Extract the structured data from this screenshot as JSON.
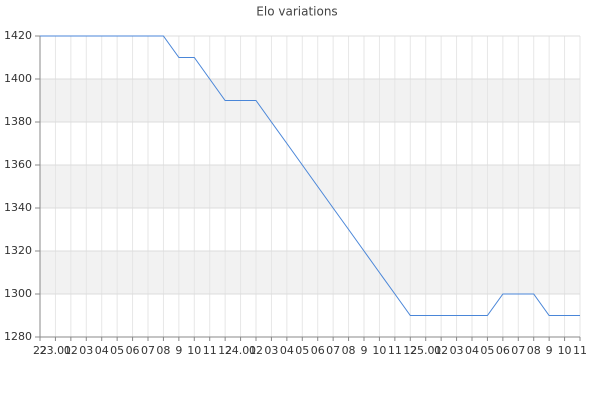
{
  "chart_data": {
    "type": "line",
    "title": "Elo variations",
    "categories": [
      "22",
      "23.01",
      "02",
      "03",
      "04",
      "05",
      "06",
      "07",
      "08",
      "9",
      "10",
      "11",
      "12",
      "24.01",
      "02",
      "03",
      "04",
      "05",
      "06",
      "07",
      "08",
      "9",
      "10",
      "11",
      "12",
      "25.01",
      "02",
      "03",
      "04",
      "05",
      "06",
      "07",
      "08",
      "9",
      "10",
      "11"
    ],
    "values": [
      1420,
      1420,
      1420,
      1420,
      1420,
      1420,
      1420,
      1420,
      1420,
      1410,
      1410,
      1400,
      1390,
      1390,
      1390,
      1380,
      1370,
      1360,
      1350,
      1340,
      1330,
      1320,
      1310,
      1300,
      1290,
      1290,
      1290,
      1290,
      1290,
      1290,
      1300,
      1300,
      1300,
      1290,
      1290,
      1290
    ],
    "color": "#4a86d8",
    "ylim": [
      1280,
      1420
    ],
    "yticks": [
      1280,
      1300,
      1320,
      1340,
      1360,
      1380,
      1400,
      1420
    ],
    "grid": true
  }
}
